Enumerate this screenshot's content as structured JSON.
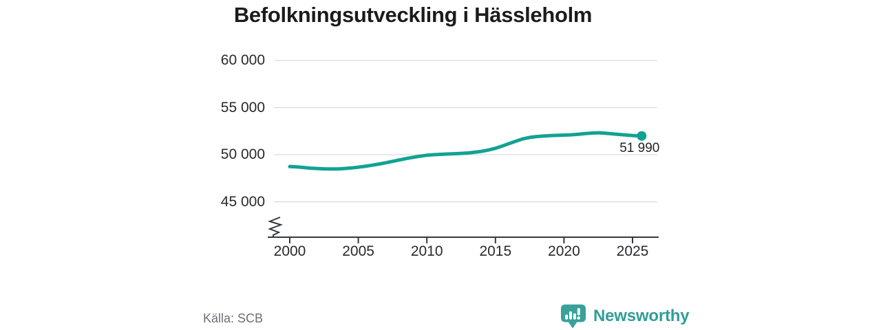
{
  "title": "Befolkningsutveckling i Hässleholm",
  "source": {
    "label": "Källa: SCB"
  },
  "brand": {
    "name": "Newsworthy",
    "icon": "bar-chart-speech-bubble-icon",
    "color": "#2f9e97",
    "icon_color": "#3aa09a"
  },
  "colors": {
    "line": "#12a294",
    "grid": "#d9d9d9",
    "axis": "#35383b",
    "tick_text": "#28292c",
    "muted_text": "#6b6f78"
  },
  "chart_data": {
    "type": "line",
    "title": "Befolkningsutveckling i Hässleholm",
    "xlabel": "",
    "ylabel": "",
    "grid": "horizontal-only",
    "legend": "none",
    "y_axis_break": true,
    "ylim": [
      44000,
      61000
    ],
    "xlim": [
      2000,
      2026.9
    ],
    "yticks": [
      "60 000",
      "55 000",
      "50 000",
      "45 000"
    ],
    "ytick_values": [
      60000,
      55000,
      50000,
      45000
    ],
    "xticks": [
      "2000",
      "2005",
      "2010",
      "2015",
      "2020",
      "2025"
    ],
    "xtick_values": [
      2000,
      2005,
      2010,
      2015,
      2020,
      2025
    ],
    "x": [
      2000,
      2000.5,
      2001,
      2001.5,
      2002,
      2002.5,
      2003,
      2003.5,
      2004,
      2004.5,
      2005,
      2005.5,
      2006,
      2006.5,
      2007,
      2007.5,
      2008,
      2008.5,
      2009,
      2009.5,
      2010,
      2010.5,
      2011,
      2011.5,
      2012,
      2012.5,
      2013,
      2013.5,
      2014,
      2014.5,
      2015,
      2015.5,
      2016,
      2016.5,
      2017,
      2017.5,
      2018,
      2018.5,
      2019,
      2019.5,
      2020,
      2020.5,
      2021,
      2021.5,
      2022,
      2022.5,
      2023,
      2023.5,
      2024,
      2024.5,
      2025,
      2025.67
    ],
    "values": [
      48740,
      48700,
      48640,
      48570,
      48530,
      48500,
      48480,
      48490,
      48530,
      48590,
      48670,
      48770,
      48880,
      49010,
      49140,
      49290,
      49440,
      49590,
      49720,
      49840,
      49940,
      50000,
      50040,
      50070,
      50100,
      50140,
      50180,
      50260,
      50360,
      50500,
      50680,
      50920,
      51180,
      51440,
      51680,
      51830,
      51930,
      51980,
      52020,
      52050,
      52080,
      52110,
      52160,
      52230,
      52290,
      52330,
      52280,
      52220,
      52150,
      52090,
      52040,
      51990
    ],
    "last_point": {
      "x": 2025.67,
      "value": 51990,
      "label": "51 990"
    }
  }
}
